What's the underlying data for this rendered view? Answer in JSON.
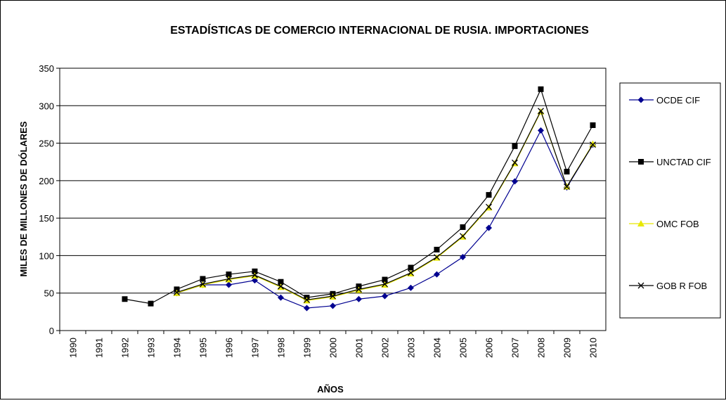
{
  "chart_data": {
    "type": "line",
    "title": "ESTADÍSTICAS DE COMERCIO INTERNACIONAL DE RUSIA. IMPORTACIONES",
    "x_label": "AÑOS",
    "y_label": "MILES DE MILLONES DE DÓLARES",
    "categories": [
      "1990",
      "1991",
      "1992",
      "1993",
      "1994",
      "1995",
      "1996",
      "1997",
      "1998",
      "1999",
      "2000",
      "2001",
      "2002",
      "2003",
      "2004",
      "2005",
      "2006",
      "2007",
      "2008",
      "2009",
      "2010"
    ],
    "series": [
      {
        "name": "OCDE CIF",
        "color": "#000090",
        "marker": "diamond",
        "values": [
          null,
          null,
          null,
          null,
          50,
          61,
          61,
          67,
          44,
          30,
          33,
          42,
          46,
          57,
          75,
          98,
          137,
          199,
          267,
          191,
          248
        ]
      },
      {
        "name": "UNCTAD CIF",
        "color": "#000000",
        "marker": "square",
        "values": [
          null,
          null,
          42,
          36,
          55,
          69,
          75,
          79,
          65,
          44,
          49,
          59,
          68,
          84,
          108,
          138,
          181,
          246,
          322,
          212,
          274
        ]
      },
      {
        "name": "OMC FOB",
        "color": "#e8e800",
        "marker": "triangle",
        "values": [
          null,
          null,
          null,
          null,
          50,
          61,
          68,
          73,
          58,
          40,
          45,
          54,
          61,
          76,
          97,
          125,
          164,
          223,
          292,
          192,
          249
        ]
      },
      {
        "name": "GOB R FOB",
        "color": "#000000",
        "marker": "x",
        "values": [
          null,
          null,
          null,
          null,
          51,
          62,
          69,
          74,
          59,
          41,
          46,
          55,
          62,
          77,
          98,
          126,
          165,
          224,
          293,
          192,
          248
        ]
      }
    ],
    "ylim": [
      0,
      350
    ],
    "yticks": [
      0,
      50,
      100,
      150,
      200,
      250,
      300,
      350
    ],
    "grid": true
  }
}
